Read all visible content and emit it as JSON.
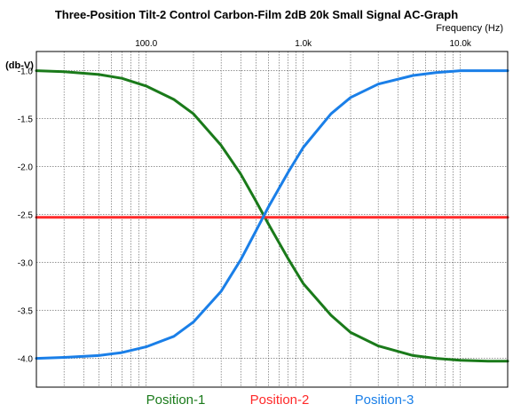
{
  "chart_data": {
    "type": "line",
    "title": "Three-Position Tilt-2 Control Carbon-Film 2dB 20k Small Signal AC-Graph",
    "xlabel": "Frequency  (Hz)",
    "ylabel": "(db-V)",
    "x_scale": "log",
    "xlim": [
      20,
      20000
    ],
    "ylim": [
      -4.3,
      -0.8
    ],
    "grid": true,
    "legend_position": "bottom",
    "x_ticks": [
      {
        "value": 100,
        "label": "100.0"
      },
      {
        "value": 1000,
        "label": "1.0k"
      },
      {
        "value": 10000,
        "label": "10.0k"
      }
    ],
    "y_ticks": [
      {
        "value": -1.0,
        "label": "-1.0"
      },
      {
        "value": -1.5,
        "label": "-1.5"
      },
      {
        "value": -2.0,
        "label": "-2.0"
      },
      {
        "value": -2.5,
        "label": "-2.5"
      },
      {
        "value": -3.0,
        "label": "-3.0"
      },
      {
        "value": -3.5,
        "label": "-3.5"
      },
      {
        "value": -4.0,
        "label": "-4.0"
      }
    ],
    "x": [
      20,
      30,
      50,
      70,
      100,
      150,
      200,
      300,
      400,
      500,
      600,
      800,
      1000,
      1500,
      2000,
      3000,
      5000,
      7000,
      10000,
      15000,
      20000
    ],
    "series": [
      {
        "name": "Position-1",
        "color": "#1a7a1a",
        "values": [
          -1.0,
          -1.01,
          -1.04,
          -1.08,
          -1.16,
          -1.3,
          -1.45,
          -1.78,
          -2.08,
          -2.36,
          -2.6,
          -2.96,
          -3.22,
          -3.55,
          -3.73,
          -3.87,
          -3.97,
          -4.0,
          -4.02,
          -4.03,
          -4.03
        ]
      },
      {
        "name": "Position-2",
        "color": "#ff2a2a",
        "values": [
          -2.53,
          -2.53,
          -2.53,
          -2.53,
          -2.53,
          -2.53,
          -2.53,
          -2.53,
          -2.53,
          -2.53,
          -2.53,
          -2.53,
          -2.53,
          -2.53,
          -2.53,
          -2.53,
          -2.53,
          -2.53,
          -2.53,
          -2.53,
          -2.53
        ]
      },
      {
        "name": "Position-3",
        "color": "#1a7fe8",
        "values": [
          -4.0,
          -3.99,
          -3.97,
          -3.94,
          -3.88,
          -3.77,
          -3.62,
          -3.3,
          -2.97,
          -2.67,
          -2.42,
          -2.06,
          -1.8,
          -1.45,
          -1.28,
          -1.14,
          -1.05,
          -1.02,
          -1.0,
          -1.0,
          -1.0
        ]
      }
    ]
  }
}
